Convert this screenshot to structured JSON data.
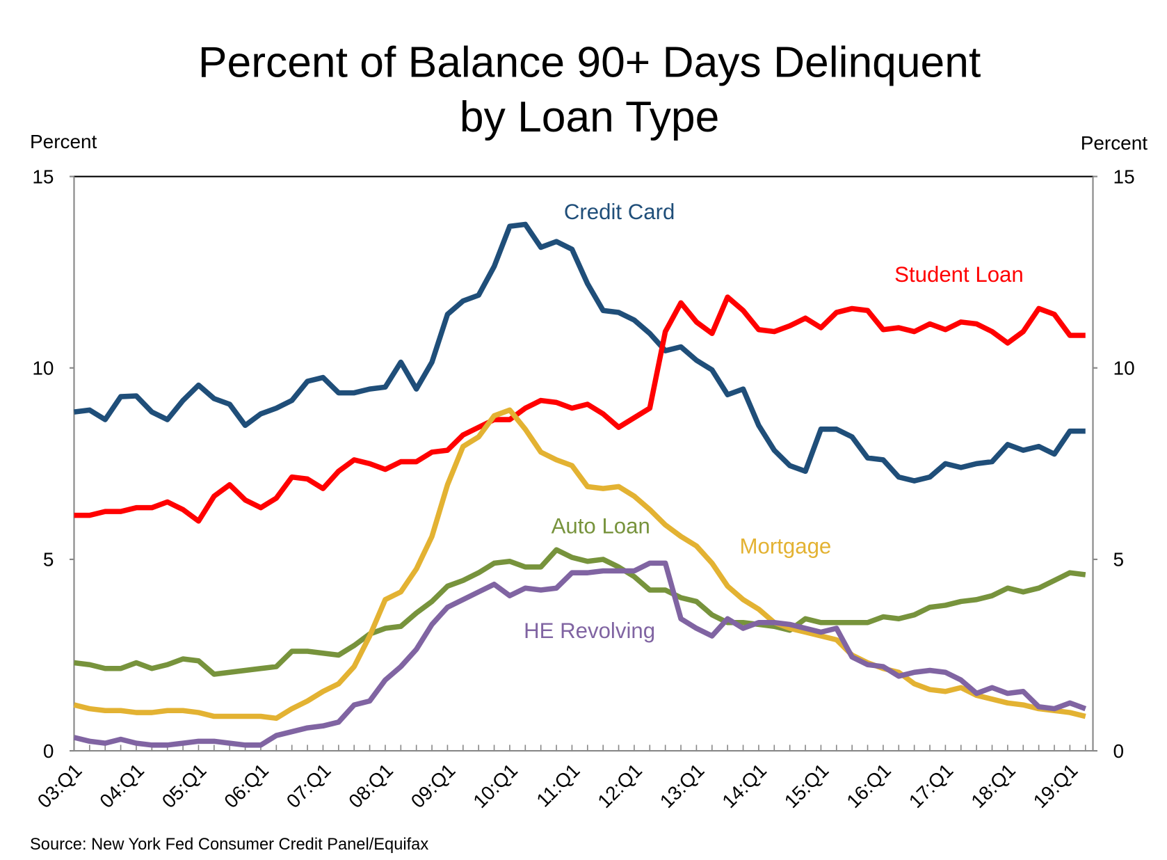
{
  "chart_data": {
    "type": "line",
    "title": [
      "Percent of Balance 90+ Days Delinquent",
      "by Loan Type"
    ],
    "ylabel_left": "Percent",
    "ylabel_right": "Percent",
    "ylim": [
      0,
      15
    ],
    "yticks": [
      "0",
      "5",
      "10",
      "15"
    ],
    "xticks": [
      "03:Q1",
      "04:Q1",
      "05:Q1",
      "06:Q1",
      "07:Q1",
      "08:Q1",
      "09:Q1",
      "10:Q1",
      "11:Q1",
      "12:Q1",
      "13:Q1",
      "14:Q1",
      "15:Q1",
      "16:Q1",
      "17:Q1",
      "18:Q1",
      "19:Q1"
    ],
    "x_range": [
      "03:Q1",
      "19:Q2"
    ],
    "grid": false,
    "legend": "inline labels",
    "source": "Source: New York Fed Consumer Credit Panel/Equifax",
    "series": [
      {
        "name": "Credit Card",
        "color": "#1F4E79",
        "values": [
          8.85,
          8.9,
          8.65,
          9.25,
          9.27,
          8.85,
          8.65,
          9.15,
          9.55,
          9.2,
          9.05,
          8.5,
          8.8,
          8.95,
          9.15,
          9.65,
          9.75,
          9.35,
          9.35,
          9.45,
          9.5,
          10.15,
          9.45,
          10.15,
          11.4,
          11.75,
          11.9,
          12.65,
          13.7,
          13.75,
          13.15,
          13.3,
          13.1,
          12.2,
          11.5,
          11.45,
          11.25,
          10.9,
          10.45,
          10.55,
          10.2,
          9.95,
          9.3,
          9.45,
          8.5,
          7.85,
          7.45,
          7.3,
          8.4,
          8.4,
          8.2,
          7.65,
          7.6,
          7.15,
          7.05,
          7.15,
          7.5,
          7.4,
          7.5,
          7.55,
          8.0,
          7.85,
          7.95,
          7.75,
          8.35,
          8.35
        ]
      },
      {
        "name": "Student Loan",
        "color": "#FF0000",
        "values": [
          6.15,
          6.15,
          6.25,
          6.25,
          6.35,
          6.35,
          6.5,
          6.3,
          6.0,
          6.65,
          6.95,
          6.55,
          6.35,
          6.6,
          7.15,
          7.1,
          6.85,
          7.3,
          7.6,
          7.5,
          7.35,
          7.55,
          7.55,
          7.8,
          7.85,
          8.25,
          8.45,
          8.65,
          8.65,
          8.95,
          9.15,
          9.1,
          8.95,
          9.05,
          8.8,
          8.45,
          8.7,
          8.95,
          10.95,
          11.7,
          11.2,
          10.9,
          11.85,
          11.5,
          11.0,
          10.95,
          11.1,
          11.3,
          11.05,
          11.45,
          11.55,
          11.5,
          11.0,
          11.05,
          10.95,
          11.15,
          11.0,
          11.2,
          11.15,
          10.95,
          10.65,
          10.95,
          11.55,
          11.4,
          10.85,
          10.85
        ]
      },
      {
        "name": "Auto Loan",
        "color": "#77933C",
        "values": [
          2.3,
          2.25,
          2.15,
          2.15,
          2.3,
          2.15,
          2.25,
          2.4,
          2.35,
          2.0,
          2.05,
          2.1,
          2.15,
          2.2,
          2.6,
          2.6,
          2.55,
          2.5,
          2.75,
          3.05,
          3.2,
          3.25,
          3.6,
          3.9,
          4.3,
          4.45,
          4.65,
          4.9,
          4.95,
          4.8,
          4.8,
          5.25,
          5.05,
          4.95,
          5.0,
          4.8,
          4.55,
          4.2,
          4.2,
          4.0,
          3.9,
          3.55,
          3.35,
          3.35,
          3.3,
          3.25,
          3.15,
          3.45,
          3.35,
          3.35,
          3.35,
          3.35,
          3.5,
          3.45,
          3.55,
          3.75,
          3.8,
          3.9,
          3.95,
          4.05,
          4.25,
          4.15,
          4.25,
          4.45,
          4.65,
          4.6
        ]
      },
      {
        "name": "Mortgage",
        "color": "#E3B232",
        "values": [
          1.2,
          1.1,
          1.05,
          1.05,
          1.0,
          1.0,
          1.05,
          1.05,
          1.0,
          0.9,
          0.9,
          0.9,
          0.9,
          0.85,
          1.1,
          1.3,
          1.55,
          1.75,
          2.2,
          3.0,
          3.95,
          4.15,
          4.75,
          5.6,
          6.95,
          7.95,
          8.2,
          8.75,
          8.9,
          8.4,
          7.8,
          7.6,
          7.45,
          6.9,
          6.85,
          6.9,
          6.65,
          6.3,
          5.9,
          5.6,
          5.35,
          4.9,
          4.3,
          3.95,
          3.7,
          3.35,
          3.2,
          3.1,
          3.0,
          2.9,
          2.5,
          2.3,
          2.15,
          2.05,
          1.75,
          1.6,
          1.55,
          1.65,
          1.45,
          1.35,
          1.25,
          1.2,
          1.1,
          1.05,
          1.0,
          0.9
        ]
      },
      {
        "name": "HE Revolving",
        "color": "#8064A2",
        "values": [
          0.35,
          0.25,
          0.2,
          0.3,
          0.2,
          0.15,
          0.15,
          0.2,
          0.25,
          0.25,
          0.2,
          0.15,
          0.15,
          0.4,
          0.5,
          0.6,
          0.65,
          0.75,
          1.2,
          1.3,
          1.85,
          2.2,
          2.65,
          3.3,
          3.75,
          3.95,
          4.15,
          4.35,
          4.05,
          4.25,
          4.2,
          4.25,
          4.65,
          4.65,
          4.7,
          4.7,
          4.7,
          4.9,
          4.9,
          3.45,
          3.2,
          3.0,
          3.45,
          3.2,
          3.35,
          3.35,
          3.3,
          3.2,
          3.1,
          3.2,
          2.45,
          2.25,
          2.2,
          1.95,
          2.05,
          2.1,
          2.05,
          1.85,
          1.5,
          1.65,
          1.5,
          1.55,
          1.15,
          1.1,
          1.25,
          1.1
        ]
      }
    ]
  }
}
